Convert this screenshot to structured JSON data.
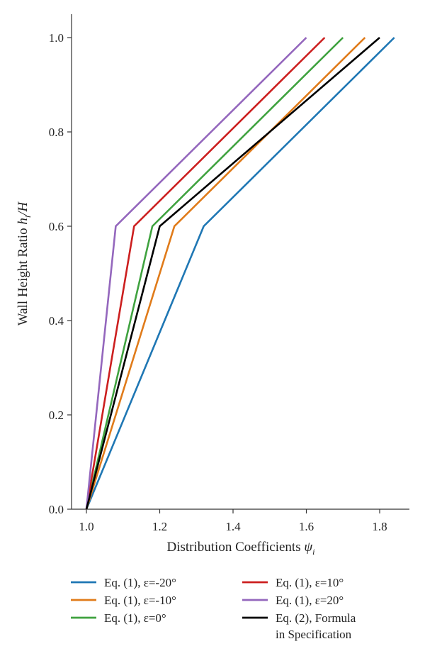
{
  "chart_data": {
    "type": "line",
    "xlabel": "Distribution Coefficients ψ_i",
    "ylabel": "Wall Height Ratio h_i/H",
    "xlim": [
      0.95,
      1.88
    ],
    "ylim": [
      0,
      1.05
    ],
    "x_ticks": [
      "1.0",
      "1.2",
      "1.4",
      "1.6",
      "1.8"
    ],
    "y_ticks": [
      "0.0",
      "0.2",
      "0.4",
      "0.6",
      "0.8",
      "1.0"
    ],
    "grid": false,
    "legend_position": "bottom",
    "series": [
      {
        "name": "Eq. (1), ε=-20°",
        "color": "#1f77b4",
        "x": [
          1.0,
          1.32,
          1.84
        ],
        "y": [
          0.0,
          0.6,
          1.0
        ]
      },
      {
        "name": "Eq. (1), ε=-10°",
        "color": "#e07b1a",
        "x": [
          1.0,
          1.24,
          1.76
        ],
        "y": [
          0.0,
          0.6,
          1.0
        ]
      },
      {
        "name": "Eq. (1), ε=0°",
        "color": "#3fa23f",
        "x": [
          1.0,
          1.18,
          1.7
        ],
        "y": [
          0.0,
          0.6,
          1.0
        ]
      },
      {
        "name": "Eq. (1), ε=10°",
        "color": "#cc1f1f",
        "x": [
          1.0,
          1.13,
          1.65
        ],
        "y": [
          0.0,
          0.6,
          1.0
        ]
      },
      {
        "name": "Eq. (1), ε=20°",
        "color": "#9467bd",
        "x": [
          1.0,
          1.08,
          1.6
        ],
        "y": [
          0.0,
          0.6,
          1.0
        ]
      },
      {
        "name": "Eq. (2), Formula in Specification",
        "color": "#000000",
        "x": [
          1.0,
          1.2,
          1.8
        ],
        "y": [
          0.0,
          0.6,
          1.0
        ]
      }
    ]
  },
  "legend": {
    "items": [
      {
        "label": "Eq. (1), ε=-20°",
        "color": "#1f77b4"
      },
      {
        "label": "Eq. (1), ε=-10°",
        "color": "#e07b1a"
      },
      {
        "label": "Eq. (1), ε=0°",
        "color": "#3fa23f"
      },
      {
        "label": "Eq. (1), ε=10°",
        "color": "#cc1f1f"
      },
      {
        "label": "Eq. (1), ε=20°",
        "color": "#9467bd"
      },
      {
        "label": "Eq. (2), Formula",
        "label2": "in Specification",
        "color": "#000000"
      }
    ]
  }
}
